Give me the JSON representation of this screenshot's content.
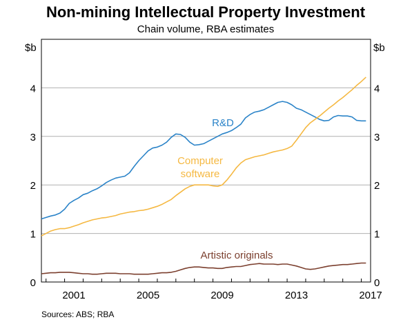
{
  "chart_data": {
    "type": "line",
    "title": "Non-mining Intellectual Property Investment",
    "subtitle": "Chain volume, RBA estimates",
    "y_unit_left": "$b",
    "y_unit_right": "$b",
    "ylim": [
      0,
      5
    ],
    "y_ticks": [
      0,
      1,
      2,
      3,
      4
    ],
    "xlim": [
      1999.75,
      2017.5
    ],
    "x_ticks": [
      2001,
      2005,
      2009,
      2013,
      2017
    ],
    "grid": true,
    "source": "Sources:  ABS; RBA",
    "series": [
      {
        "name": "R&D",
        "label_lines": [
          "R&D"
        ],
        "color": "#2a83c8",
        "x": [
          1999.75,
          2000.0,
          2000.25,
          2000.5,
          2000.75,
          2001.0,
          2001.25,
          2001.5,
          2001.75,
          2002.0,
          2002.25,
          2002.5,
          2002.75,
          2003.0,
          2003.25,
          2003.5,
          2003.75,
          2004.0,
          2004.25,
          2004.5,
          2004.75,
          2005.0,
          2005.25,
          2005.5,
          2005.75,
          2006.0,
          2006.25,
          2006.5,
          2006.75,
          2007.0,
          2007.25,
          2007.5,
          2007.75,
          2008.0,
          2008.25,
          2008.5,
          2008.75,
          2009.0,
          2009.25,
          2009.5,
          2009.75,
          2010.0,
          2010.25,
          2010.5,
          2010.75,
          2011.0,
          2011.25,
          2011.5,
          2011.75,
          2012.0,
          2012.25,
          2012.5,
          2012.75,
          2013.0,
          2013.25,
          2013.5,
          2013.75,
          2014.0,
          2014.25,
          2014.5,
          2014.75,
          2015.0,
          2015.25,
          2015.5,
          2015.75,
          2016.0,
          2016.25,
          2016.5,
          2016.75,
          2017.0,
          2017.25
        ],
        "values": [
          1.3,
          1.33,
          1.36,
          1.38,
          1.42,
          1.5,
          1.62,
          1.68,
          1.73,
          1.8,
          1.83,
          1.88,
          1.92,
          1.98,
          2.05,
          2.1,
          2.14,
          2.16,
          2.18,
          2.25,
          2.38,
          2.5,
          2.6,
          2.7,
          2.76,
          2.78,
          2.82,
          2.88,
          2.98,
          3.05,
          3.04,
          2.98,
          2.88,
          2.82,
          2.83,
          2.85,
          2.9,
          2.95,
          3.0,
          3.05,
          3.08,
          3.12,
          3.18,
          3.25,
          3.38,
          3.45,
          3.5,
          3.52,
          3.55,
          3.6,
          3.65,
          3.7,
          3.72,
          3.7,
          3.65,
          3.58,
          3.55,
          3.5,
          3.45,
          3.4,
          3.35,
          3.32,
          3.33,
          3.4,
          3.43,
          3.42,
          3.42,
          3.4,
          3.33,
          3.32,
          3.32
        ]
      },
      {
        "name": "Computer software",
        "label_lines": [
          "Computer",
          "software"
        ],
        "color": "#f5b841",
        "x": [
          1999.75,
          2000.0,
          2000.25,
          2000.5,
          2000.75,
          2001.0,
          2001.25,
          2001.5,
          2001.75,
          2002.0,
          2002.25,
          2002.5,
          2002.75,
          2003.0,
          2003.25,
          2003.5,
          2003.75,
          2004.0,
          2004.25,
          2004.5,
          2004.75,
          2005.0,
          2005.25,
          2005.5,
          2005.75,
          2006.0,
          2006.25,
          2006.5,
          2006.75,
          2007.0,
          2007.25,
          2007.5,
          2007.75,
          2008.0,
          2008.25,
          2008.5,
          2008.75,
          2009.0,
          2009.25,
          2009.5,
          2009.75,
          2010.0,
          2010.25,
          2010.5,
          2010.75,
          2011.0,
          2011.25,
          2011.5,
          2011.75,
          2012.0,
          2012.25,
          2012.5,
          2012.75,
          2013.0,
          2013.25,
          2013.5,
          2013.75,
          2014.0,
          2014.25,
          2014.5,
          2014.75,
          2015.0,
          2015.25,
          2015.5,
          2015.75,
          2016.0,
          2016.25,
          2016.5,
          2016.75,
          2017.0,
          2017.25
        ],
        "values": [
          0.95,
          1.0,
          1.05,
          1.08,
          1.1,
          1.1,
          1.12,
          1.15,
          1.18,
          1.22,
          1.25,
          1.28,
          1.3,
          1.32,
          1.33,
          1.35,
          1.37,
          1.4,
          1.42,
          1.44,
          1.45,
          1.47,
          1.48,
          1.5,
          1.53,
          1.56,
          1.6,
          1.65,
          1.7,
          1.78,
          1.85,
          1.92,
          1.97,
          2.0,
          2.0,
          2.0,
          2.0,
          1.98,
          1.97,
          2.0,
          2.1,
          2.22,
          2.35,
          2.45,
          2.52,
          2.55,
          2.58,
          2.6,
          2.62,
          2.65,
          2.68,
          2.7,
          2.72,
          2.75,
          2.8,
          2.92,
          3.05,
          3.18,
          3.28,
          3.35,
          3.42,
          3.5,
          3.58,
          3.65,
          3.73,
          3.8,
          3.88,
          3.96,
          4.05,
          4.13,
          4.22
        ]
      },
      {
        "name": "Artistic originals",
        "label_lines": [
          "Artistic originals"
        ],
        "color": "#7b3f2e",
        "x": [
          1999.75,
          2000.0,
          2000.25,
          2000.5,
          2000.75,
          2001.0,
          2001.25,
          2001.5,
          2001.75,
          2002.0,
          2002.25,
          2002.5,
          2002.75,
          2003.0,
          2003.25,
          2003.5,
          2003.75,
          2004.0,
          2004.25,
          2004.5,
          2004.75,
          2005.0,
          2005.25,
          2005.5,
          2005.75,
          2006.0,
          2006.25,
          2006.5,
          2006.75,
          2007.0,
          2007.25,
          2007.5,
          2007.75,
          2008.0,
          2008.25,
          2008.5,
          2008.75,
          2009.0,
          2009.25,
          2009.5,
          2009.75,
          2010.0,
          2010.25,
          2010.5,
          2010.75,
          2011.0,
          2011.25,
          2011.5,
          2011.75,
          2012.0,
          2012.25,
          2012.5,
          2012.75,
          2013.0,
          2013.25,
          2013.5,
          2013.75,
          2014.0,
          2014.25,
          2014.5,
          2014.75,
          2015.0,
          2015.25,
          2015.5,
          2015.75,
          2016.0,
          2016.25,
          2016.5,
          2016.75,
          2017.0,
          2017.25
        ],
        "values": [
          0.17,
          0.18,
          0.19,
          0.19,
          0.2,
          0.2,
          0.2,
          0.19,
          0.18,
          0.17,
          0.17,
          0.16,
          0.16,
          0.17,
          0.18,
          0.18,
          0.18,
          0.17,
          0.17,
          0.17,
          0.16,
          0.16,
          0.16,
          0.16,
          0.17,
          0.18,
          0.19,
          0.19,
          0.2,
          0.22,
          0.25,
          0.28,
          0.3,
          0.31,
          0.31,
          0.3,
          0.29,
          0.29,
          0.28,
          0.28,
          0.3,
          0.31,
          0.32,
          0.32,
          0.34,
          0.36,
          0.37,
          0.38,
          0.37,
          0.37,
          0.37,
          0.36,
          0.37,
          0.37,
          0.35,
          0.33,
          0.3,
          0.27,
          0.26,
          0.27,
          0.29,
          0.31,
          0.33,
          0.34,
          0.35,
          0.36,
          0.36,
          0.37,
          0.38,
          0.39,
          0.39
        ]
      }
    ]
  }
}
